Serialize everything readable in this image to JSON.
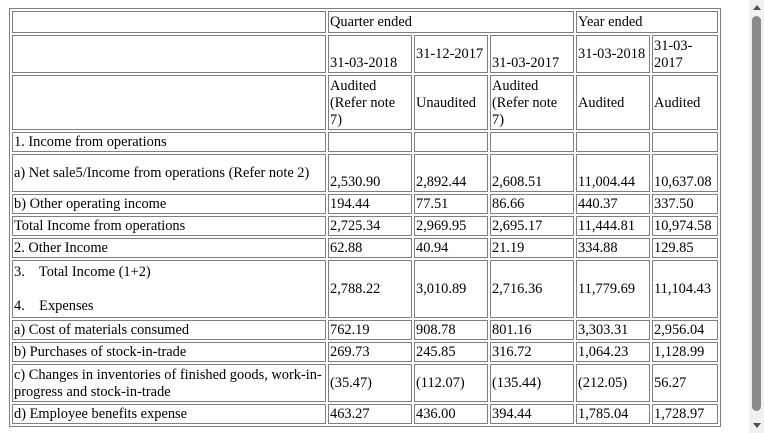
{
  "header": {
    "quarter_ended": "Quarter ended",
    "year_ended": "Year ended",
    "dates": [
      "31-03-2018",
      "31-12-2017",
      "31-03-2017",
      "31-03-2018",
      "31-03-2017"
    ],
    "status": [
      "Audited (Refer note 7)",
      "Unaudited",
      "Audited (Refer note 7)",
      "Audited",
      "Audited"
    ]
  },
  "rows": [
    {
      "label": "1. Income from operations",
      "values": [
        "",
        "",
        "",
        "",
        ""
      ]
    },
    {
      "label": "a) Net sale5/Income from operations (Refer note 2)",
      "values": [
        "2,530.90",
        "2,892.44",
        "2,608.51",
        "11,004.44",
        "10,637.08"
      ]
    },
    {
      "label": "b) Other operating income",
      "values": [
        "194.44",
        "77.51",
        "86.66",
        "440.37",
        "337.50"
      ]
    },
    {
      "label": "Total Income from operations",
      "values": [
        "2,725.34",
        "2,969.95",
        "2,695.17",
        "11,444.81",
        "10,974.58"
      ]
    },
    {
      "label": "2. Other Income",
      "values": [
        "62.88",
        "40.94",
        "21.19",
        "334.88",
        "129.85"
      ]
    },
    {
      "label": "3.    Total Income (1+2)",
      "label2": "4.    Expenses",
      "values": [
        "2,788.22",
        "3,010.89",
        "2,716.36",
        "11,779.69",
        "11,104.43"
      ]
    },
    {
      "label": "a) Cost of materials consumed",
      "values": [
        "762.19",
        "908.78",
        "801.16",
        "3,303.31",
        "2,956.04"
      ]
    },
    {
      "label": "b) Purchases of stock-in-trade",
      "values": [
        "269.73",
        "245.85",
        "316.72",
        "1,064.23",
        "1,128.99"
      ]
    },
    {
      "label": "c) Changes in inventories of finished goods, work-in-progress and stock-in-trade",
      "values": [
        "(35.47)",
        "(112.07)",
        "(135.44)",
        "(212.05)",
        "56.27"
      ]
    },
    {
      "label": "d) Employee benefits expense",
      "values": [
        "463.27",
        "436.00",
        "394.44",
        "1,785.04",
        "1,728.97"
      ]
    }
  ]
}
